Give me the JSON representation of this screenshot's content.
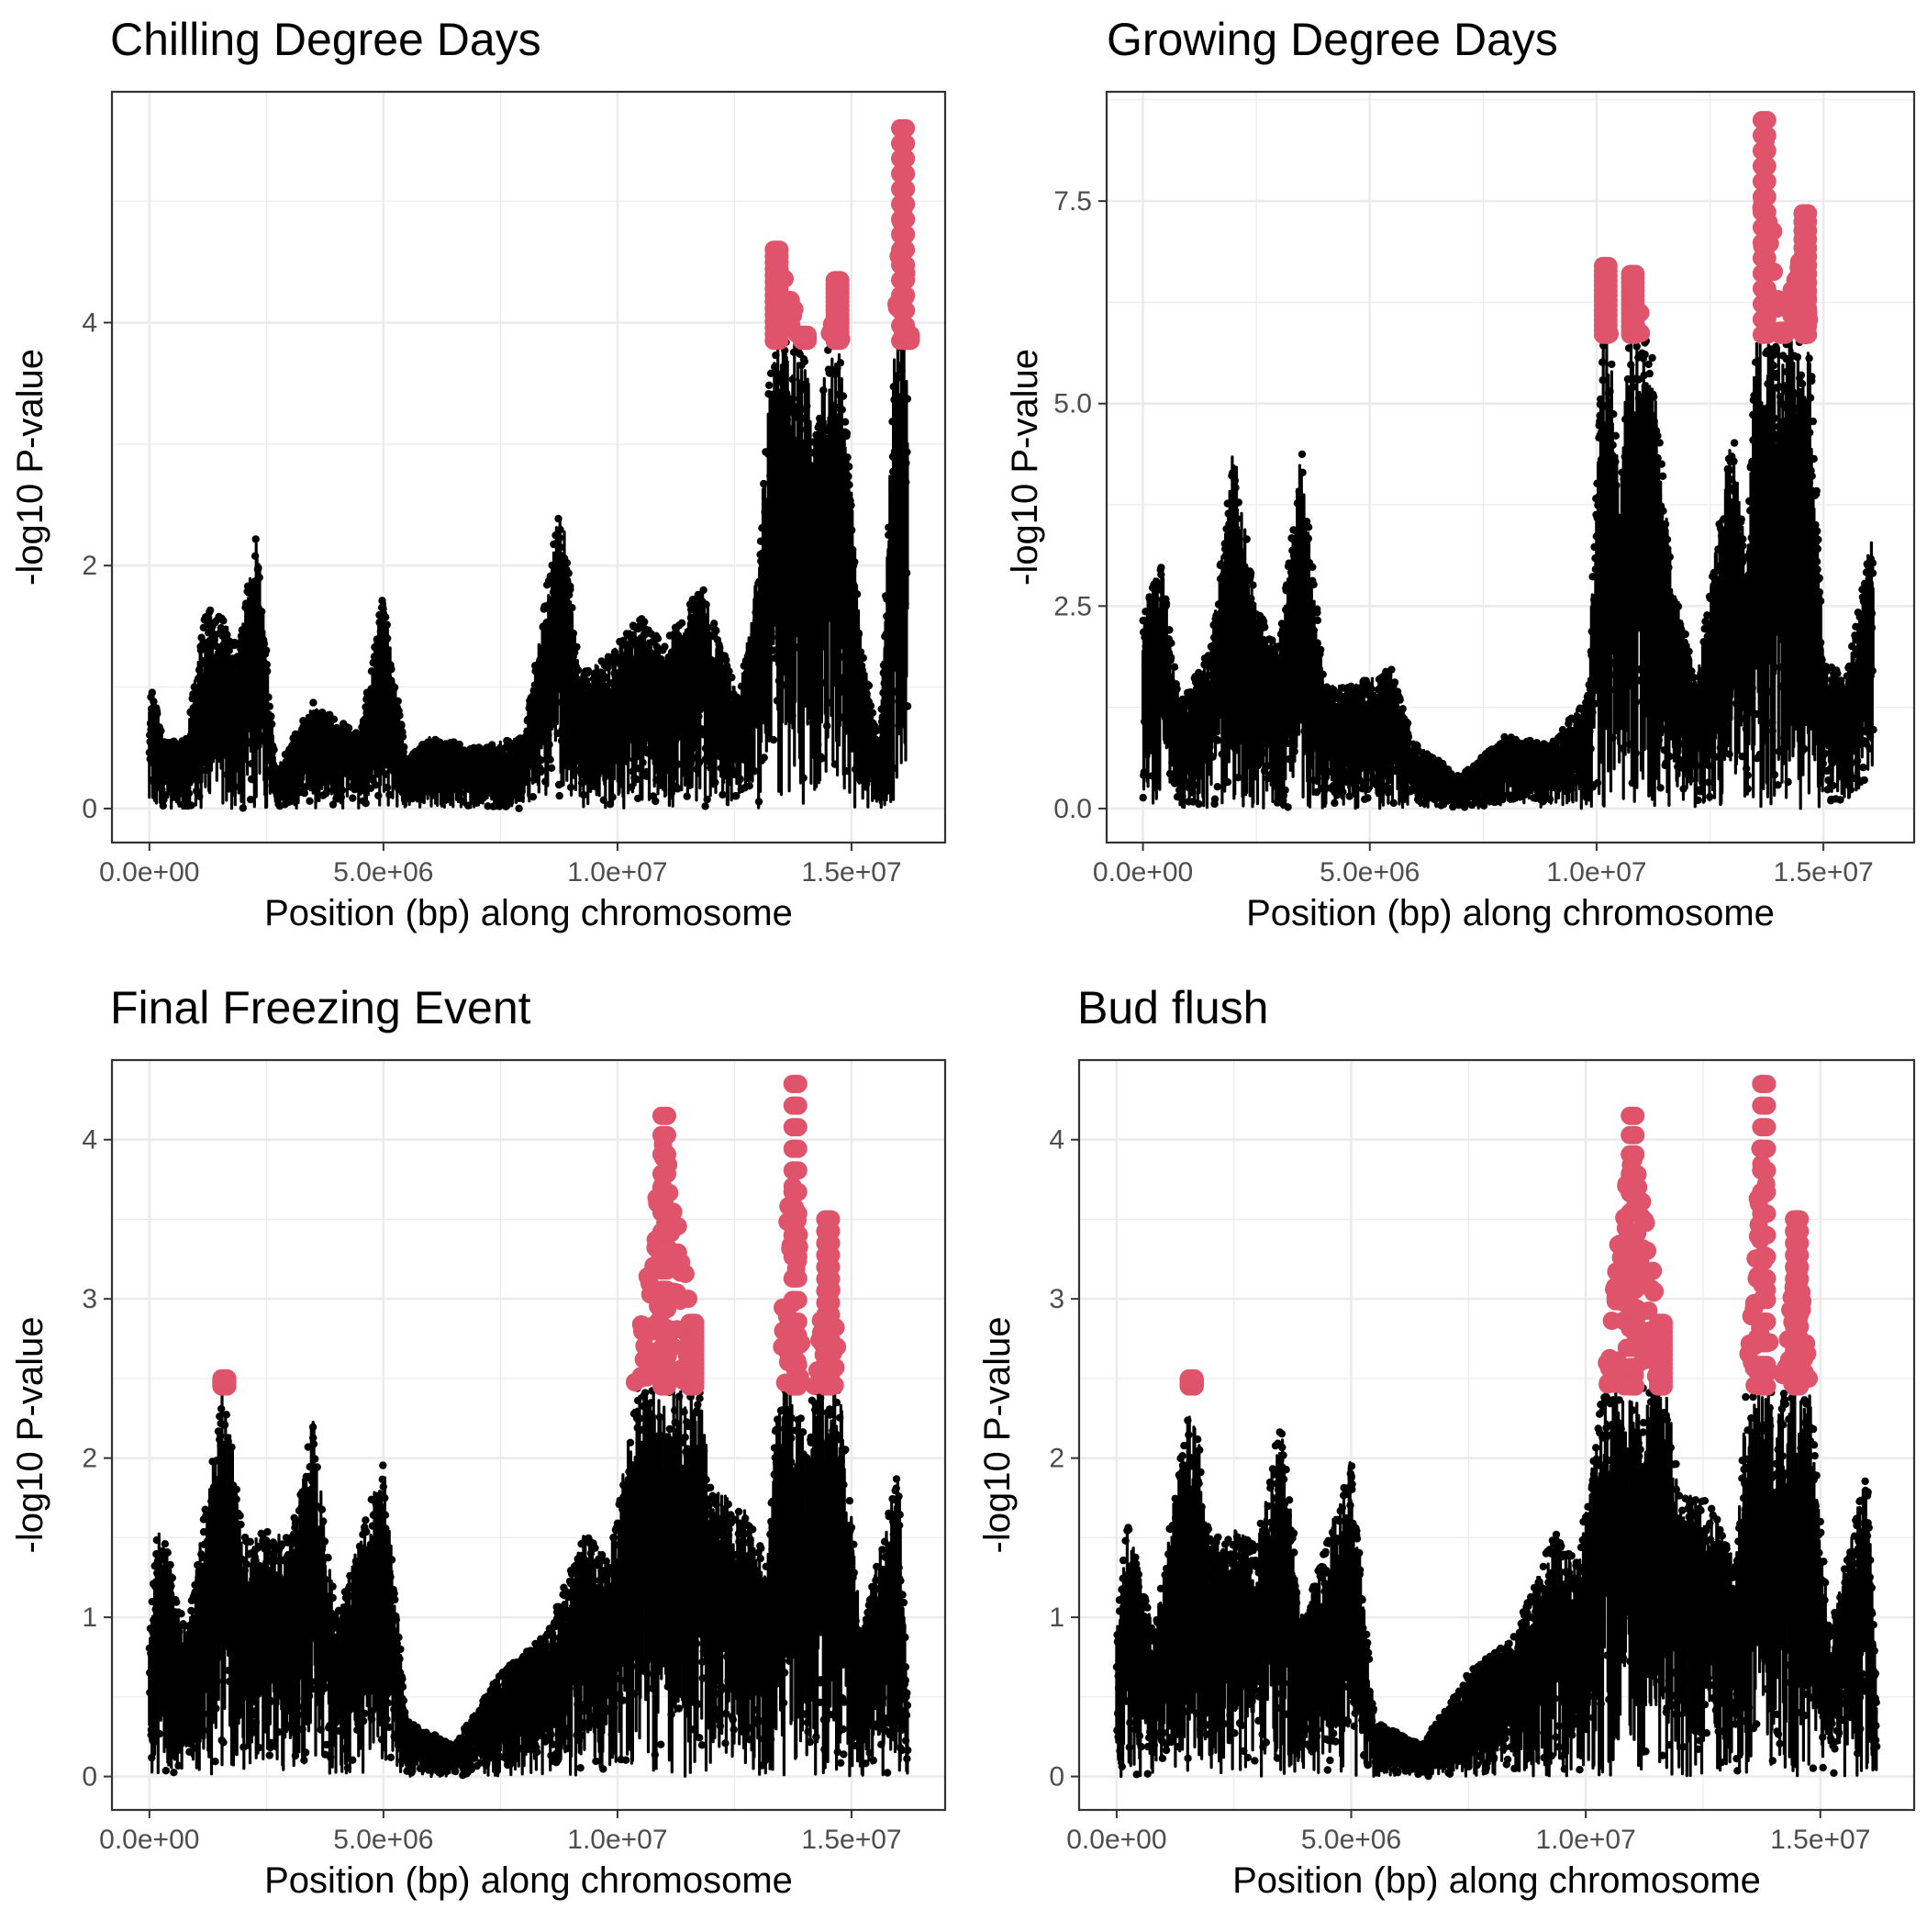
{
  "colors": {
    "normal_point": "#000000",
    "highlight_point": "#DF536B",
    "grid": "#EBEBEB",
    "panel_border": "#333333",
    "background": "#FFFFFF"
  },
  "chart_data": [
    {
      "type": "scatter",
      "title": "Chilling Degree Days",
      "xlabel": "Position (bp) along chromosome",
      "ylabel": "-log10 P-value",
      "xlim": [
        -800000,
        17000000
      ],
      "ylim": [
        -0.28,
        5.9
      ],
      "xticks": [
        0,
        5000000,
        10000000,
        15000000
      ],
      "xtick_labels": [
        "0.0e+00",
        "5.0e+06",
        "1.0e+07",
        "1.5e+07"
      ],
      "yticks": [
        0,
        2,
        4
      ],
      "ytick_labels": [
        "0",
        "2",
        "4"
      ],
      "grid": true,
      "threshold": 3.85,
      "peak_profile": [
        [
          0,
          1.1
        ],
        [
          300000,
          0.55
        ],
        [
          800000,
          0.6
        ],
        [
          1200000,
          1.65
        ],
        [
          1500000,
          1.6
        ],
        [
          1900000,
          1.35
        ],
        [
          2300000,
          2.3
        ],
        [
          2700000,
          0.3
        ],
        [
          3500000,
          0.9
        ],
        [
          4500000,
          0.6
        ],
        [
          5000000,
          1.8
        ],
        [
          5500000,
          0.4
        ],
        [
          6000000,
          0.6
        ],
        [
          7000000,
          0.5
        ],
        [
          8000000,
          0.6
        ],
        [
          8800000,
          2.6
        ],
        [
          9200000,
          1.1
        ],
        [
          9800000,
          1.25
        ],
        [
          10500000,
          1.6
        ],
        [
          11000000,
          1.35
        ],
        [
          11800000,
          1.85
        ],
        [
          12600000,
          0.9
        ],
        [
          13000000,
          2.0
        ],
        [
          13400000,
          4.6
        ],
        [
          14000000,
          3.9
        ],
        [
          14200000,
          3.0
        ],
        [
          14700000,
          4.35
        ],
        [
          15200000,
          1.4
        ],
        [
          15600000,
          0.5
        ],
        [
          16100000,
          5.6
        ],
        [
          16200000,
          3.9
        ]
      ]
    },
    {
      "type": "scatter",
      "title": "Growing Degree Days",
      "xlabel": "Position (bp) along chromosome",
      "ylabel": "-log10 P-value",
      "xlim": [
        -800000,
        17000000
      ],
      "ylim": [
        -0.42,
        8.85
      ],
      "xticks": [
        0,
        5000000,
        10000000,
        15000000
      ],
      "xtick_labels": [
        "0.0e+00",
        "5.0e+06",
        "1.0e+07",
        "1.5e+07"
      ],
      "yticks": [
        0,
        2.5,
        5,
        7.5
      ],
      "ytick_labels": [
        "0.0",
        "2.5",
        "5.0",
        "7.5"
      ],
      "grid": true,
      "threshold": 5.85,
      "peak_profile": [
        [
          0,
          2.4
        ],
        [
          400000,
          3.1
        ],
        [
          800000,
          1.3
        ],
        [
          1500000,
          2.0
        ],
        [
          2000000,
          4.5
        ],
        [
          2500000,
          2.5
        ],
        [
          3000000,
          2.0
        ],
        [
          3500000,
          4.45
        ],
        [
          4000000,
          1.5
        ],
        [
          5000000,
          1.6
        ],
        [
          5500000,
          1.75
        ],
        [
          6000000,
          0.8
        ],
        [
          7000000,
          0.4
        ],
        [
          8000000,
          0.9
        ],
        [
          9000000,
          0.8
        ],
        [
          9800000,
          1.4
        ],
        [
          10200000,
          6.7
        ],
        [
          10500000,
          4.0
        ],
        [
          10800000,
          6.6
        ],
        [
          11200000,
          5.8
        ],
        [
          11600000,
          3.3
        ],
        [
          12200000,
          1.5
        ],
        [
          13000000,
          4.8
        ],
        [
          13300000,
          3.0
        ],
        [
          13700000,
          8.5
        ],
        [
          14100000,
          5.9
        ],
        [
          14600000,
          7.35
        ],
        [
          15000000,
          1.9
        ],
        [
          15500000,
          1.6
        ],
        [
          16100000,
          3.5
        ]
      ]
    },
    {
      "type": "scatter",
      "title": "Final Freezing Event",
      "xlabel": "Position (bp) along chromosome",
      "ylabel": "-log10 P-value",
      "xlim": [
        -800000,
        17000000
      ],
      "ylim": [
        -0.21,
        4.5
      ],
      "xticks": [
        0,
        5000000,
        10000000,
        15000000
      ],
      "xtick_labels": [
        "0.0e+00",
        "5.0e+06",
        "1.0e+07",
        "1.5e+07"
      ],
      "yticks": [
        0,
        1,
        2,
        3,
        4
      ],
      "ytick_labels": [
        "0",
        "1",
        "2",
        "3",
        "4"
      ],
      "grid": true,
      "threshold": 2.45,
      "peak_profile": [
        [
          0,
          0.9
        ],
        [
          200000,
          1.65
        ],
        [
          800000,
          0.9
        ],
        [
          1600000,
          2.5
        ],
        [
          2000000,
          1.5
        ],
        [
          2500000,
          1.55
        ],
        [
          3000000,
          1.5
        ],
        [
          3500000,
          2.25
        ],
        [
          4000000,
          1.0
        ],
        [
          5000000,
          2.0
        ],
        [
          5500000,
          0.35
        ],
        [
          6500000,
          0.2
        ],
        [
          7500000,
          0.65
        ],
        [
          8500000,
          0.9
        ],
        [
          9300000,
          1.55
        ],
        [
          9800000,
          1.35
        ],
        [
          10200000,
          2.05
        ],
        [
          11000000,
          4.15
        ],
        [
          11600000,
          2.85
        ],
        [
          12000000,
          1.8
        ],
        [
          12600000,
          1.75
        ],
        [
          13200000,
          1.35
        ],
        [
          13800000,
          4.35
        ],
        [
          14000000,
          1.9
        ],
        [
          14500000,
          3.5
        ],
        [
          15200000,
          0.9
        ],
        [
          16000000,
          1.95
        ],
        [
          16200000,
          0.5
        ]
      ]
    },
    {
      "type": "scatter",
      "title": "Bud flush",
      "xlabel": "Position (bp) along chromosome",
      "ylabel": "-log10 P-value",
      "xlim": [
        -800000,
        17000000
      ],
      "ylim": [
        -0.21,
        4.5
      ],
      "xticks": [
        0,
        5000000,
        10000000,
        15000000
      ],
      "xtick_labels": [
        "0.0e+00",
        "5.0e+06",
        "1.0e+07",
        "1.5e+07"
      ],
      "yticks": [
        0,
        1,
        2,
        3,
        4
      ],
      "ytick_labels": [
        "0",
        "1",
        "2",
        "3",
        "4"
      ],
      "grid": true,
      "threshold": 2.45,
      "peak_profile": [
        [
          0,
          0.9
        ],
        [
          200000,
          1.65
        ],
        [
          800000,
          0.9
        ],
        [
          1600000,
          2.5
        ],
        [
          2000000,
          1.5
        ],
        [
          2500000,
          1.55
        ],
        [
          3000000,
          1.5
        ],
        [
          3500000,
          2.25
        ],
        [
          4000000,
          1.0
        ],
        [
          5000000,
          2.0
        ],
        [
          5500000,
          0.35
        ],
        [
          6500000,
          0.2
        ],
        [
          7500000,
          0.65
        ],
        [
          8500000,
          0.9
        ],
        [
          9300000,
          1.55
        ],
        [
          9800000,
          1.35
        ],
        [
          10200000,
          2.05
        ],
        [
          11000000,
          4.15
        ],
        [
          11600000,
          2.85
        ],
        [
          12000000,
          1.8
        ],
        [
          12600000,
          1.75
        ],
        [
          13200000,
          1.35
        ],
        [
          13800000,
          4.35
        ],
        [
          14000000,
          1.9
        ],
        [
          14500000,
          3.5
        ],
        [
          15200000,
          0.9
        ],
        [
          16000000,
          1.95
        ],
        [
          16200000,
          0.5
        ]
      ]
    }
  ]
}
